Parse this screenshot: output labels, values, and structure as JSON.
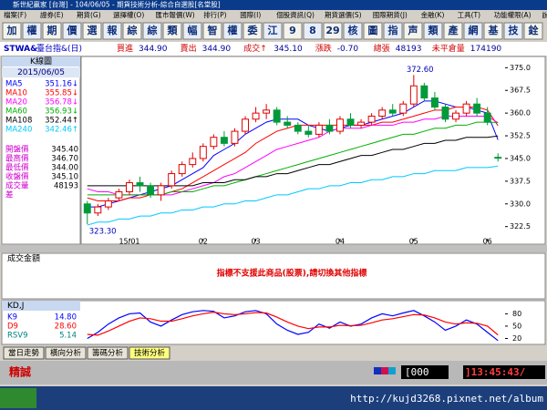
{
  "window": {
    "title": "新世紀贏家 [台灣] - 104/06/05 - 期貨技術分析-綜合自選股[名堂股]",
    "menu": [
      "檔案(F)",
      "證券(E)",
      "期貨(G)",
      "選擇權(O)",
      "匯市報價(W)",
      "排行(P)",
      "國際(I)",
      "個股資訊(Q)",
      "期貨選價(S)",
      "國際期貨(J)",
      "金融(K)",
      "工具(T)",
      "功能權限(A)",
      "說明(H)"
    ],
    "toolbar": [
      "加",
      "權",
      "期",
      "價",
      "選",
      "報",
      "綜",
      "綜",
      "類",
      "幅",
      "智",
      "權",
      "委",
      "江",
      "9",
      "8",
      "29",
      "核",
      "圖",
      "指",
      "声",
      "類",
      "產",
      "網",
      "基",
      "技",
      "銓"
    ]
  },
  "quote": {
    "symbol": "STWA&",
    "name": "臺台指&(日)",
    "fields": [
      {
        "label": "買進",
        "value": "344.90"
      },
      {
        "label": "賣出",
        "value": "344.90"
      },
      {
        "label": "成交↑",
        "value": "345.10"
      },
      {
        "label": "漲跌",
        "value": "-0.70"
      },
      {
        "label": "總張",
        "value": "48193"
      },
      {
        "label": "未平倉量",
        "value": "174190"
      }
    ]
  },
  "panel": {
    "header": "K線圖",
    "date": "2015/06/05",
    "prices": [
      {
        "label": "開盤價",
        "value": "345.40"
      },
      {
        "label": "最高價",
        "value": "346.70"
      },
      {
        "label": "最低價",
        "value": "344.00"
      },
      {
        "label": "收盤價",
        "value": "345.10"
      },
      {
        "label": "成交量",
        "value": "48193"
      },
      {
        "label": "差"
      }
    ]
  },
  "chart_data": [
    {
      "type": "candlestick",
      "categories": [
        null,
        null,
        null,
        null,
        "15/01",
        null,
        null,
        null,
        null,
        null,
        null,
        "02",
        null,
        null,
        null,
        null,
        "03",
        null,
        null,
        null,
        null,
        null,
        null,
        null,
        "04",
        null,
        null,
        null,
        null,
        null,
        null,
        "05",
        null,
        null,
        null,
        null,
        null,
        null,
        "06",
        null
      ],
      "open": [
        330,
        327,
        329,
        332,
        334,
        337,
        336,
        333,
        336,
        340,
        343,
        345,
        349,
        352,
        350,
        354,
        358,
        360,
        361,
        357,
        356,
        354,
        353,
        356,
        354,
        358,
        356,
        357,
        359,
        361,
        360,
        363,
        369,
        365,
        362,
        358,
        360,
        363,
        360,
        345.4
      ],
      "high": [
        331,
        330,
        332,
        335,
        338,
        339,
        337,
        337,
        341,
        344,
        347,
        350,
        353,
        354,
        355,
        359,
        362,
        363,
        362,
        359,
        357,
        356,
        357,
        358,
        359,
        360,
        358,
        360,
        362,
        363,
        364,
        372.6,
        370,
        367,
        363,
        361,
        364,
        365,
        362,
        346.7
      ],
      "low": [
        323.3,
        326,
        328,
        331,
        333,
        334,
        332,
        331,
        335,
        339,
        342,
        344,
        348,
        349,
        349,
        353,
        357,
        358,
        356,
        355,
        353,
        352,
        352,
        353,
        353,
        355,
        355,
        356,
        358,
        359,
        359,
        362,
        364,
        361,
        357,
        357,
        359,
        359,
        356,
        344
      ],
      "close": [
        327,
        329,
        331,
        334,
        337,
        336,
        333,
        336,
        340,
        343,
        345,
        349,
        352,
        350,
        354,
        358,
        360,
        361,
        357,
        356,
        354,
        353,
        356,
        354,
        358,
        356,
        357,
        359,
        361,
        360,
        363,
        369,
        365,
        362,
        358,
        360,
        363,
        360,
        357,
        345.1
      ],
      "up_color": "#e00000",
      "down_color": "#009a3a",
      "lines": [
        {
          "name": "MA5",
          "color": "#0000ff",
          "last_label": "351.16↓",
          "values": [
            329,
            329,
            330,
            331,
            332,
            333,
            334,
            335,
            336,
            338,
            340,
            342,
            346,
            348,
            350,
            353,
            355,
            357,
            358,
            358,
            358,
            356,
            355,
            354,
            355,
            356,
            356,
            357,
            358,
            359,
            360,
            362,
            364,
            364,
            363,
            362,
            362,
            361,
            360,
            351.16
          ]
        },
        {
          "name": "MA10",
          "color": "#ff0000",
          "last_label": "355.85↓",
          "values": [
            332,
            331,
            331,
            331,
            332,
            332,
            333,
            333,
            334,
            335,
            337,
            339,
            341,
            343,
            345,
            347,
            350,
            352,
            354,
            355,
            356,
            356,
            356,
            356,
            356,
            356,
            356,
            356,
            357,
            357,
            358,
            359,
            360,
            361,
            361,
            362,
            362,
            362,
            361,
            355.85
          ]
        },
        {
          "name": "MA20",
          "color": "#ff00ff",
          "last_label": "356.78↓",
          "values": [
            335,
            334,
            334,
            333,
            333,
            333,
            333,
            333,
            333,
            334,
            335,
            336,
            337,
            339,
            340,
            342,
            344,
            346,
            348,
            349,
            350,
            351,
            352,
            354,
            355,
            355,
            355,
            356,
            356,
            356,
            357,
            357,
            358,
            358,
            359,
            359,
            359,
            359,
            359,
            356.78
          ]
        },
        {
          "name": "MA60",
          "color": "#00b000",
          "last_label": "356.93↓",
          "values": [
            333,
            333,
            333,
            333,
            333,
            333,
            333,
            333,
            334,
            334,
            334,
            335,
            336,
            336,
            337,
            338,
            339,
            340,
            341,
            342,
            343,
            344,
            345,
            346,
            347,
            348,
            349,
            350,
            351,
            352,
            353,
            353,
            354,
            355,
            355,
            356,
            356,
            357,
            357,
            356.93
          ]
        },
        {
          "name": "MA108",
          "color": "#000000",
          "last_label": "352.44↑",
          "values": [
            336,
            336,
            336,
            336,
            336,
            336,
            336,
            336,
            336,
            336,
            336,
            337,
            337,
            337,
            338,
            338,
            339,
            339,
            340,
            340,
            341,
            342,
            343,
            343,
            344,
            345,
            346,
            346,
            347,
            348,
            348,
            349,
            350,
            350,
            351,
            351,
            352,
            352,
            352,
            352.44
          ]
        },
        {
          "name": "MA240",
          "color": "#00c8ff",
          "last_label": "342.46↑",
          "values": [
            323,
            324,
            324,
            325,
            325,
            326,
            326,
            327,
            327,
            328,
            328,
            329,
            329,
            330,
            330,
            331,
            331,
            332,
            333,
            333,
            334,
            335,
            335,
            336,
            336,
            337,
            337,
            338,
            338,
            339,
            339,
            340,
            340,
            341,
            341,
            341,
            342,
            342,
            342,
            342.46
          ]
        }
      ],
      "annotations": [
        {
          "label": "372.60",
          "at": 31
        },
        {
          "label": "323.30",
          "at": 0
        }
      ],
      "ylim": [
        318.5,
        377.5
      ],
      "yticks": [
        {
          "value": 375,
          "label": "375.0"
        },
        {
          "value": 367.5,
          "label": "367.5"
        },
        {
          "value": 360,
          "label": "360.0"
        },
        {
          "value": 352.5,
          "label": "352.5"
        },
        {
          "value": 345,
          "label": "345.0"
        },
        {
          "value": 337.5,
          "label": "337.5"
        },
        {
          "value": 330,
          "label": "330.0"
        },
        {
          "value": 322.5,
          "label": "322.5"
        }
      ]
    },
    {
      "type": "line",
      "title": "KD,J",
      "series": [
        {
          "name": "K9",
          "color": "#0000ff",
          "last_label": "14.80",
          "values": [
            20,
            35,
            55,
            70,
            80,
            82,
            60,
            50,
            65,
            78,
            85,
            88,
            86,
            70,
            75,
            85,
            88,
            80,
            55,
            40,
            30,
            35,
            55,
            45,
            60,
            50,
            55,
            70,
            80,
            75,
            82,
            88,
            75,
            60,
            40,
            50,
            65,
            55,
            35,
            14.8
          ]
        },
        {
          "name": "D9",
          "color": "#ff0000",
          "last_label": "28.60",
          "values": [
            30,
            28,
            38,
            50,
            62,
            70,
            68,
            62,
            62,
            68,
            75,
            80,
            84,
            80,
            78,
            80,
            83,
            82,
            72,
            60,
            50,
            44,
            48,
            48,
            52,
            51,
            52,
            58,
            65,
            68,
            73,
            78,
            77,
            70,
            60,
            55,
            58,
            57,
            50,
            28.6
          ]
        }
      ],
      "extra_readouts": [
        {
          "name": "RSV9",
          "label": "5.14"
        }
      ],
      "ylim": [
        10,
        92
      ],
      "yticks": [
        20,
        50,
        80
      ]
    }
  ],
  "volume_panel": {
    "title": "成交金額",
    "message": "指標不支援此商品(股票),請切換其他指標"
  },
  "tabs": [
    "當日走勢",
    "橫向分析",
    "籌碼分析",
    "技術分析"
  ],
  "status": {
    "brand": "精誠",
    "code": "[000",
    "time": "]13:45:43/"
  },
  "taskbar": {
    "url": "http://kujd3268.pixnet.net/album"
  }
}
